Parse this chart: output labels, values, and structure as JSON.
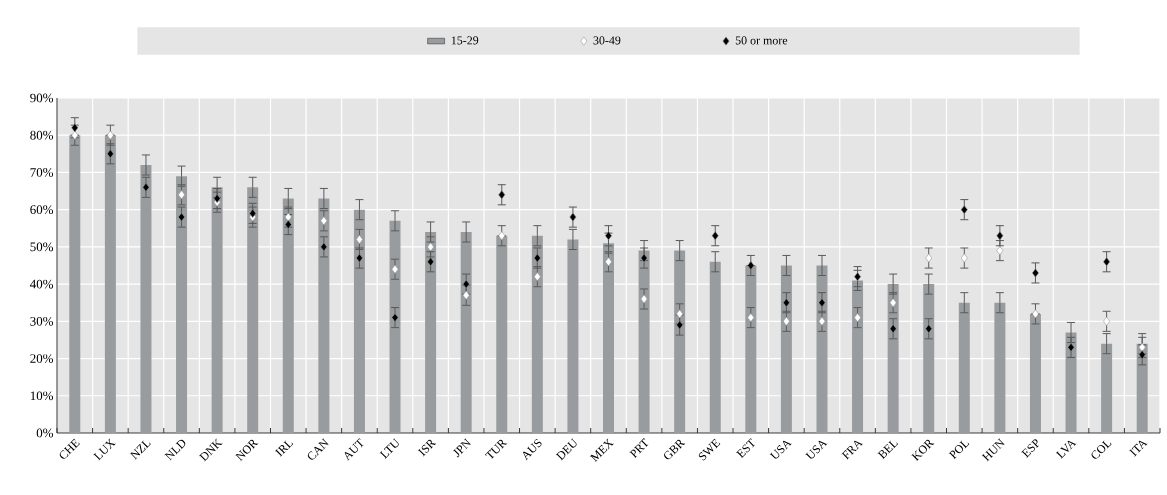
{
  "chart_data": {
    "type": "bar",
    "categories": [
      "CHE",
      "LUX",
      "NZL",
      "NLD",
      "DNK",
      "NOR",
      "IRL",
      "CAN",
      "AUT",
      "LTU",
      "ISR",
      "JPN",
      "TUR",
      "AUS",
      "DEU",
      "MEX",
      "PRT",
      "GBR",
      "SWE",
      "EST",
      "USA",
      "USA",
      "FRA",
      "BEL",
      "KOR",
      "POL",
      "HUN",
      "ESP",
      "LVA",
      "COL",
      "ITA"
    ],
    "series": [
      {
        "name": "15-29",
        "color": "#999c9e",
        "values": [
          80,
          80,
          72,
          69,
          66,
          66,
          63,
          63,
          60,
          57,
          54,
          54,
          53,
          53,
          52,
          51,
          49,
          49,
          46,
          45,
          45,
          45,
          41,
          40,
          40,
          35,
          35,
          32,
          27,
          24,
          24
        ],
        "errors": [
          2.7,
          2.7,
          2.7,
          2.7,
          2.7,
          2.7,
          2.7,
          2.7,
          2.7,
          2.7,
          2.7,
          2.7,
          2.7,
          2.7,
          2.7,
          2.7,
          2.7,
          2.7,
          2.7,
          2.7,
          2.7,
          2.7,
          2.7,
          2.7,
          2.7,
          2.7,
          2.7,
          2.7,
          2.7,
          2.7,
          2.7
        ]
      },
      {
        "name": "30-49",
        "type": "scatter",
        "marker": "diamond",
        "color": "#ffffff",
        "values": [
          80,
          80,
          null,
          64,
          62,
          58,
          58,
          57,
          52,
          44,
          50,
          37,
          53,
          42,
          null,
          46,
          36,
          32,
          null,
          31,
          30,
          30,
          31,
          35,
          47,
          47,
          49,
          32,
          null,
          30,
          23
        ],
        "errors": [
          null,
          null,
          null,
          2.7,
          2.7,
          2.7,
          2.7,
          2.7,
          2.7,
          2.7,
          2.7,
          2.7,
          null,
          2.7,
          null,
          2.7,
          2.7,
          2.7,
          null,
          2.7,
          2.7,
          2.7,
          2.7,
          2.7,
          2.7,
          2.7,
          2.7,
          null,
          null,
          2.7,
          2.7
        ]
      },
      {
        "name": "50 or more",
        "type": "scatter",
        "marker": "diamond",
        "color": "#000000",
        "values": [
          82,
          75,
          66,
          58,
          63,
          59,
          56,
          50,
          47,
          31,
          46,
          40,
          64,
          47,
          58,
          53,
          47,
          29,
          53,
          45,
          35,
          35,
          42,
          28,
          28,
          60,
          53,
          43,
          23,
          46,
          21
        ],
        "errors": [
          2.7,
          2.7,
          2.7,
          2.7,
          2.7,
          2.7,
          2.7,
          2.7,
          2.7,
          2.7,
          2.7,
          2.7,
          2.7,
          2.7,
          2.7,
          2.7,
          2.7,
          2.7,
          2.7,
          null,
          2.7,
          2.7,
          2.7,
          2.7,
          2.7,
          2.7,
          2.7,
          2.7,
          2.7,
          2.7,
          2.7
        ]
      }
    ],
    "ylim": [
      0,
      90
    ],
    "yticks": [
      {
        "value": 0,
        "label": "0%"
      },
      {
        "value": 10,
        "label": "10%"
      },
      {
        "value": 20,
        "label": "20%"
      },
      {
        "value": 30,
        "label": "30%"
      },
      {
        "value": 40,
        "label": "40%"
      },
      {
        "value": 50,
        "label": "50%"
      },
      {
        "value": 60,
        "label": "60%"
      },
      {
        "value": 70,
        "label": "70%"
      },
      {
        "value": 80,
        "label": "80%"
      },
      {
        "value": 90,
        "label": "90%"
      }
    ],
    "grid": true,
    "legend": "top"
  }
}
